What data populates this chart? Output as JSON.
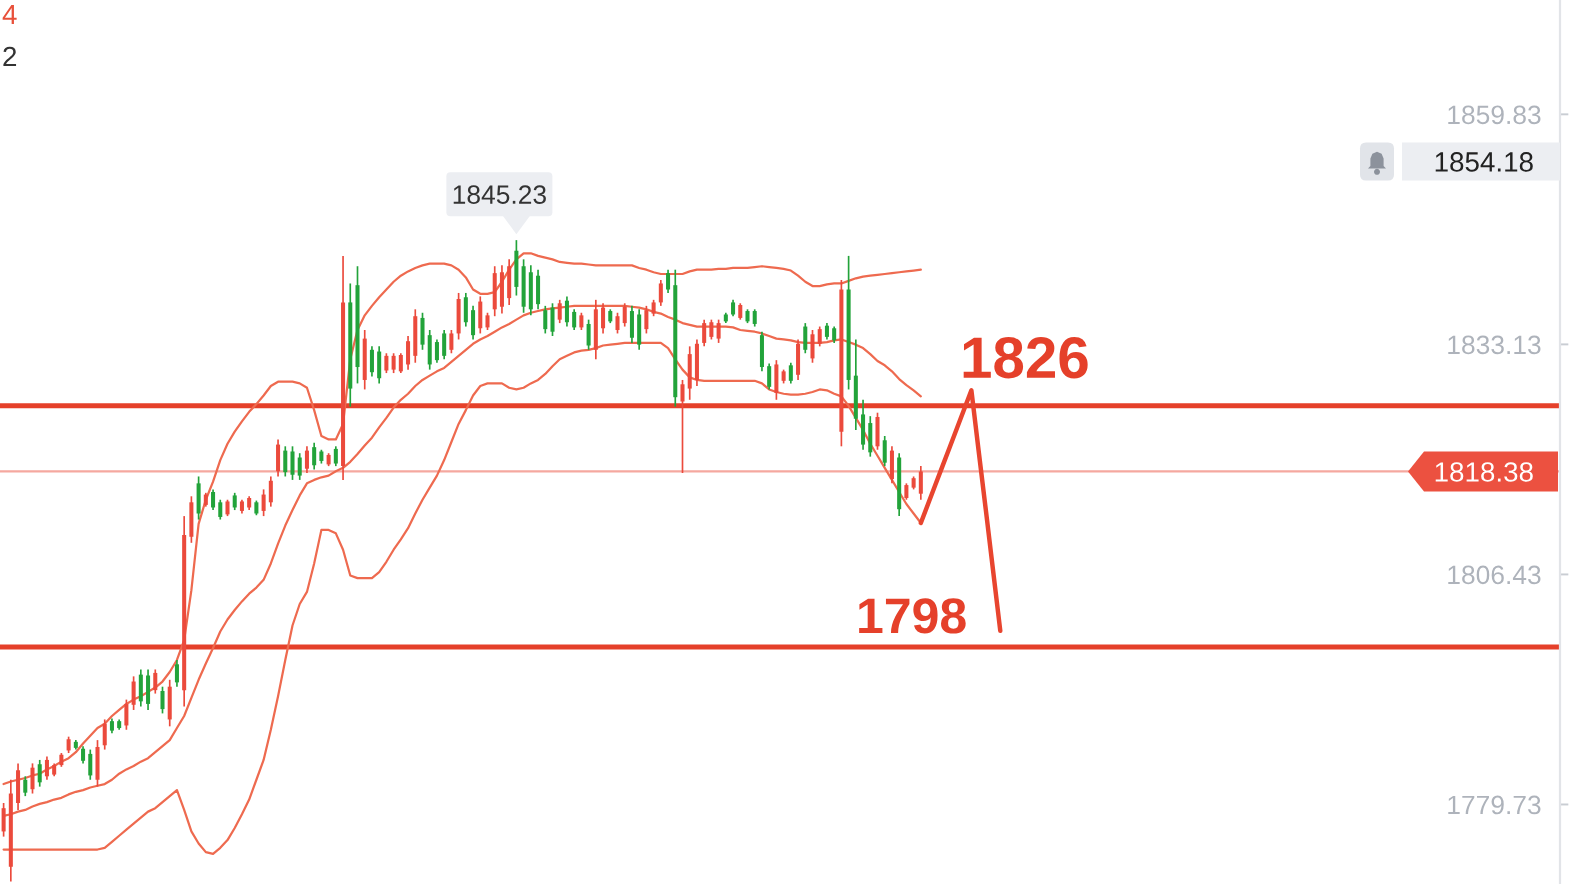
{
  "chart_data": {
    "type": "candlestick",
    "categories": [
      null,
      null,
      null,
      null,
      null,
      null,
      null,
      null,
      null,
      null,
      null,
      null,
      null,
      null,
      null,
      null,
      null,
      null,
      null,
      null,
      null,
      null,
      null,
      null,
      null,
      null,
      null,
      null,
      null,
      null,
      null,
      null,
      null,
      null,
      null,
      null,
      null,
      null,
      null,
      null,
      null,
      null,
      null,
      null,
      null,
      null,
      null,
      null,
      null,
      null,
      null,
      null,
      null,
      null,
      null,
      null,
      null,
      null,
      null,
      null,
      null,
      null,
      null,
      null,
      null,
      null,
      null,
      null,
      null,
      null,
      null,
      null,
      null,
      null,
      null,
      null,
      null,
      null,
      null,
      null,
      null,
      null,
      null,
      null,
      null,
      null,
      null,
      null,
      null,
      null,
      null,
      null,
      null,
      null,
      null,
      null,
      null,
      null,
      null,
      null,
      null,
      null,
      null,
      null,
      null,
      null,
      null,
      null,
      null,
      null,
      null,
      null,
      null,
      null,
      null,
      null,
      null,
      null,
      null,
      null,
      null,
      null,
      null,
      null,
      null,
      null,
      null,
      null,
      null,
      null,
      null,
      null,
      null,
      null,
      null,
      null,
      null,
      null,
      null,
      null,
      null,
      null,
      null,
      null,
      null,
      null,
      null,
      null,
      null,
      null,
      null,
      null,
      null,
      null,
      null,
      null,
      null,
      null,
      null,
      null,
      null,
      null,
      null,
      null,
      null,
      null,
      null,
      null,
      null,
      null,
      null,
      null,
      null,
      null,
      null,
      null,
      null,
      null,
      null,
      null,
      null,
      null,
      null,
      null,
      null,
      null,
      null,
      null,
      null,
      null,
      null,
      null,
      null,
      null,
      null,
      null,
      null,
      null,
      null,
      null,
      null,
      null,
      null,
      null,
      null,
      null,
      null,
      null,
      null,
      null,
      null,
      null,
      null,
      null,
      null,
      null
    ],
    "ohlc": [
      [
        1776.6,
        1779.9,
        1776.0,
        1779.3
      ],
      [
        1772.5,
        1782.6,
        1770.8,
        1781.0
      ],
      [
        1779.9,
        1784.5,
        1779.1,
        1783.7
      ],
      [
        1782.6,
        1783.0,
        1780.7,
        1781.1
      ],
      [
        1781.5,
        1784.5,
        1781.0,
        1784.0
      ],
      [
        1784.4,
        1784.9,
        1781.8,
        1782.3
      ],
      [
        1783.0,
        1785.3,
        1782.6,
        1784.9
      ],
      [
        1783.2,
        1784.5,
        1783.0,
        1784.3
      ],
      [
        1784.3,
        1785.7,
        1784.1,
        1785.5
      ],
      [
        1786.0,
        1787.6,
        1785.7,
        1787.3
      ],
      [
        1787.0,
        1787.2,
        1786.1,
        1786.3
      ],
      [
        1786.2,
        1786.5,
        1784.5,
        1784.8
      ],
      [
        1785.6,
        1786.1,
        1782.6,
        1783.1
      ],
      [
        1782.6,
        1787.2,
        1781.8,
        1786.4
      ],
      [
        1786.6,
        1789.6,
        1786.1,
        1789.1
      ],
      [
        1789.4,
        1789.7,
        1788.0,
        1788.3
      ],
      [
        1789.4,
        1789.6,
        1788.4,
        1788.6
      ],
      [
        1788.9,
        1791.9,
        1788.4,
        1791.4
      ],
      [
        1791.3,
        1794.6,
        1790.7,
        1794.0
      ],
      [
        1794.8,
        1795.4,
        1791.1,
        1791.7
      ],
      [
        1794.7,
        1795.4,
        1790.7,
        1791.4
      ],
      [
        1793.0,
        1795.4,
        1792.6,
        1795.0
      ],
      [
        1792.9,
        1793.4,
        1790.3,
        1790.8
      ],
      [
        1789.6,
        1794.2,
        1788.8,
        1793.4
      ],
      [
        1796.0,
        1796.5,
        1793.4,
        1793.9
      ],
      [
        1793.0,
        1813.2,
        1791.1,
        1811.0
      ],
      [
        1810.8,
        1815.5,
        1810.1,
        1814.8
      ],
      [
        1817.0,
        1817.8,
        1812.8,
        1813.5
      ],
      [
        1814.5,
        1815.9,
        1814.3,
        1815.7
      ],
      [
        1816.0,
        1816.3,
        1813.9,
        1814.2
      ],
      [
        1814.8,
        1815.1,
        1812.8,
        1813.1
      ],
      [
        1813.4,
        1815.1,
        1813.2,
        1814.9
      ],
      [
        1815.6,
        1815.9,
        1813.9,
        1814.2
      ],
      [
        1813.8,
        1815.1,
        1813.5,
        1814.9
      ],
      [
        1814.2,
        1815.5,
        1813.9,
        1815.3
      ],
      [
        1814.8,
        1815.0,
        1813.3,
        1813.5
      ],
      [
        1813.8,
        1816.3,
        1813.2,
        1815.7
      ],
      [
        1814.8,
        1817.8,
        1814.3,
        1817.3
      ],
      [
        1818.4,
        1822.1,
        1817.8,
        1821.5
      ],
      [
        1820.8,
        1821.3,
        1817.8,
        1818.3
      ],
      [
        1820.7,
        1821.3,
        1817.4,
        1818.0
      ],
      [
        1820.0,
        1820.5,
        1817.4,
        1817.9
      ],
      [
        1818.7,
        1821.3,
        1818.2,
        1820.8
      ],
      [
        1821.2,
        1821.7,
        1818.6,
        1819.1
      ],
      [
        1820.7,
        1820.9,
        1819.3,
        1819.6
      ],
      [
        1819.2,
        1820.5,
        1819.0,
        1820.3
      ],
      [
        1821.0,
        1821.3,
        1819.0,
        1819.3
      ],
      [
        1819.0,
        1843.4,
        1817.4,
        1838.0
      ],
      [
        1838.0,
        1840.2,
        1825.9,
        1828.0
      ],
      [
        1840.0,
        1842.2,
        1828.6,
        1830.5
      ],
      [
        1829.0,
        1834.8,
        1827.9,
        1833.8
      ],
      [
        1832.5,
        1832.9,
        1829.4,
        1829.9
      ],
      [
        1832.3,
        1832.9,
        1828.6,
        1829.2
      ],
      [
        1830.1,
        1832.1,
        1829.8,
        1831.8
      ],
      [
        1830.2,
        1832.1,
        1829.8,
        1831.8
      ],
      [
        1830.0,
        1832.1,
        1829.8,
        1831.9
      ],
      [
        1830.8,
        1834.1,
        1830.2,
        1833.5
      ],
      [
        1831.8,
        1837.2,
        1831.0,
        1836.4
      ],
      [
        1836.2,
        1836.8,
        1832.5,
        1833.1
      ],
      [
        1834.2,
        1834.8,
        1830.2,
        1830.8
      ],
      [
        1833.4,
        1833.7,
        1831.0,
        1831.3
      ],
      [
        1834.4,
        1834.8,
        1831.4,
        1831.8
      ],
      [
        1832.5,
        1834.8,
        1832.1,
        1834.4
      ],
      [
        1834.4,
        1839.1,
        1833.7,
        1838.4
      ],
      [
        1838.6,
        1839.1,
        1835.2,
        1835.7
      ],
      [
        1837.1,
        1837.6,
        1833.7,
        1834.2
      ],
      [
        1835.0,
        1838.7,
        1834.4,
        1838.1
      ],
      [
        1835.1,
        1836.8,
        1834.8,
        1836.5
      ],
      [
        1837.2,
        1842.2,
        1836.4,
        1841.4
      ],
      [
        1837.5,
        1842.3,
        1836.7,
        1841.5
      ],
      [
        1838.5,
        1843.0,
        1837.7,
        1842.2
      ],
      [
        1844.0,
        1845.23,
        1838.8,
        1839.8
      ],
      [
        1842.2,
        1843.0,
        1836.8,
        1837.5
      ],
      [
        1841.5,
        1842.3,
        1836.5,
        1837.2
      ],
      [
        1841.1,
        1841.8,
        1837.2,
        1837.8
      ],
      [
        1837.1,
        1837.6,
        1834.4,
        1834.9
      ],
      [
        1837.4,
        1837.9,
        1834.1,
        1834.6
      ],
      [
        1836.0,
        1838.3,
        1835.6,
        1837.9
      ],
      [
        1838.2,
        1838.7,
        1835.2,
        1835.7
      ],
      [
        1836.9,
        1837.2,
        1834.8,
        1835.1
      ],
      [
        1835.1,
        1836.8,
        1834.8,
        1836.5
      ],
      [
        1835.5,
        1836.0,
        1832.5,
        1833.0
      ],
      [
        1832.5,
        1838.3,
        1831.4,
        1837.2
      ],
      [
        1835.0,
        1837.9,
        1834.4,
        1837.4
      ],
      [
        1837.0,
        1837.2,
        1835.6,
        1835.8
      ],
      [
        1834.8,
        1836.8,
        1834.4,
        1836.4
      ],
      [
        1835.6,
        1837.9,
        1835.2,
        1837.5
      ],
      [
        1837.0,
        1837.6,
        1833.3,
        1833.9
      ],
      [
        1836.6,
        1837.2,
        1832.5,
        1833.1
      ],
      [
        1834.9,
        1837.6,
        1834.4,
        1837.1
      ],
      [
        1836.7,
        1838.3,
        1836.4,
        1838.0
      ],
      [
        1838.0,
        1840.6,
        1837.6,
        1840.2
      ],
      [
        1841.4,
        1841.8,
        1839.1,
        1839.5
      ],
      [
        1840.0,
        1841.8,
        1825.9,
        1827.0
      ],
      [
        1826.5,
        1829.0,
        1818.2,
        1828.5
      ],
      [
        1828.0,
        1832.9,
        1826.7,
        1832.0
      ],
      [
        1829.0,
        1833.7,
        1828.3,
        1833.2
      ],
      [
        1833.3,
        1836.0,
        1832.9,
        1835.6
      ],
      [
        1834.0,
        1836.0,
        1833.7,
        1835.7
      ],
      [
        1833.8,
        1836.0,
        1833.3,
        1835.6
      ],
      [
        1836.6,
        1836.8,
        1835.6,
        1835.8
      ],
      [
        1838.0,
        1838.3,
        1836.4,
        1836.6
      ],
      [
        1836.2,
        1837.9,
        1836.0,
        1837.7
      ],
      [
        1837.0,
        1837.2,
        1835.6,
        1835.8
      ],
      [
        1837.0,
        1837.2,
        1835.2,
        1835.5
      ],
      [
        1834.2,
        1834.6,
        1830.0,
        1830.5
      ],
      [
        1830.6,
        1830.9,
        1827.9,
        1828.2
      ],
      [
        1827.5,
        1831.3,
        1826.7,
        1830.8
      ],
      [
        1828.9,
        1830.2,
        1828.6,
        1830.0
      ],
      [
        1830.7,
        1831.0,
        1828.6,
        1828.9
      ],
      [
        1829.6,
        1833.7,
        1829.0,
        1833.2
      ],
      [
        1835.2,
        1835.6,
        1832.1,
        1832.5
      ],
      [
        1831.5,
        1834.8,
        1831.0,
        1834.3
      ],
      [
        1833.2,
        1835.2,
        1832.9,
        1834.9
      ],
      [
        1835.3,
        1835.6,
        1833.7,
        1834.0
      ],
      [
        1835.0,
        1835.2,
        1833.3,
        1833.6
      ],
      [
        1823.0,
        1840.6,
        1821.3,
        1839.5
      ],
      [
        1839.5,
        1843.4,
        1827.9,
        1829.0
      ],
      [
        1829.5,
        1833.7,
        1823.2,
        1824.5
      ],
      [
        1825.0,
        1826.7,
        1820.9,
        1821.5
      ],
      [
        1824.0,
        1824.8,
        1820.1,
        1820.6
      ],
      [
        1821.3,
        1825.2,
        1820.9,
        1824.7
      ],
      [
        1822.0,
        1822.5,
        1819.0,
        1819.4
      ],
      [
        1817.5,
        1821.3,
        1817.0,
        1820.8
      ],
      [
        1820.0,
        1820.5,
        1813.2,
        1814.0
      ],
      [
        1815.3,
        1817.0,
        1815.1,
        1816.8
      ],
      [
        1816.5,
        1817.8,
        1816.3,
        1817.6
      ],
      [
        1815.8,
        1819.0,
        1815.1,
        1818.38
      ],
      null,
      null,
      null,
      null,
      null,
      null,
      null,
      null,
      null,
      null,
      null,
      null,
      null,
      null,
      null,
      null,
      null,
      null,
      null,
      null,
      null,
      null,
      null,
      null,
      null,
      null,
      null,
      null,
      null,
      null,
      null,
      null,
      null,
      null,
      null,
      null,
      null,
      null,
      null,
      null,
      null,
      null,
      null,
      null,
      null,
      null,
      null,
      null,
      null,
      null,
      null,
      null,
      null,
      null,
      null,
      null,
      null,
      null,
      null,
      null,
      null,
      null,
      null,
      null,
      null,
      null,
      null,
      null,
      null,
      null,
      null,
      null,
      null,
      null,
      null,
      null,
      null,
      null,
      null,
      null,
      null,
      null,
      null,
      null,
      null,
      null,
      null,
      null
    ],
    "colors": [
      "#eb4a3c",
      "#eb4a3c",
      "#eb4a3c",
      "#22a33a",
      "#eb4a3c",
      "#22a33a",
      "#eb4a3c",
      "#eb4a3c",
      "#eb4a3c",
      "#eb4a3c",
      "#22a33a",
      "#22a33a",
      "#22a33a",
      "#eb4a3c",
      "#eb4a3c",
      "#22a33a",
      "#22a33a",
      "#eb4a3c",
      "#eb4a3c",
      "#22a33a",
      "#22a33a",
      "#eb4a3c",
      "#22a33a",
      "#eb4a3c",
      "#22a33a",
      "#eb4a3c",
      "#eb4a3c",
      "#22a33a",
      "#eb4a3c",
      "#22a33a",
      "#22a33a",
      "#eb4a3c",
      "#22a33a",
      "#eb4a3c",
      "#eb4a3c",
      "#22a33a",
      "#eb4a3c",
      "#eb4a3c",
      "#eb4a3c",
      "#22a33a",
      "#22a33a",
      "#22a33a",
      "#eb4a3c",
      "#22a33a",
      "#22a33a",
      "#eb4a3c",
      "#22a33a",
      "#eb4a3c",
      "#22a33a",
      "#22a33a",
      "#eb4a3c",
      "#22a33a",
      "#22a33a",
      "#eb4a3c",
      "#eb4a3c",
      "#eb4a3c",
      "#eb4a3c",
      "#eb4a3c",
      "#22a33a",
      "#22a33a",
      "#22a33a",
      "#22a33a",
      "#eb4a3c",
      "#eb4a3c",
      "#22a33a",
      "#22a33a",
      "#eb4a3c",
      "#eb4a3c",
      "#eb4a3c",
      "#eb4a3c",
      "#eb4a3c",
      "#22a33a",
      "#22a33a",
      "#22a33a",
      "#22a33a",
      "#22a33a",
      "#22a33a",
      "#eb4a3c",
      "#22a33a",
      "#22a33a",
      "#eb4a3c",
      "#22a33a",
      "#eb4a3c",
      "#eb4a3c",
      "#22a33a",
      "#eb4a3c",
      "#eb4a3c",
      "#22a33a",
      "#22a33a",
      "#eb4a3c",
      "#eb4a3c",
      "#eb4a3c",
      "#22a33a",
      "#22a33a",
      "#eb4a3c",
      "#eb4a3c",
      "#eb4a3c",
      "#eb4a3c",
      "#eb4a3c",
      "#eb4a3c",
      "#22a33a",
      "#22a33a",
      "#eb4a3c",
      "#22a33a",
      "#22a33a",
      "#22a33a",
      "#22a33a",
      "#eb4a3c",
      "#eb4a3c",
      "#22a33a",
      "#eb4a3c",
      "#22a33a",
      "#eb4a3c",
      "#eb4a3c",
      "#22a33a",
      "#22a33a",
      "#eb4a3c",
      "#22a33a",
      "#22a33a",
      "#22a33a",
      "#22a33a",
      "#eb4a3c",
      "#22a33a",
      "#eb4a3c",
      "#22a33a",
      "#eb4a3c",
      "#eb4a3c",
      "#eb4a3c",
      null,
      null,
      null,
      null,
      null,
      null,
      null,
      null,
      null,
      null,
      null,
      null,
      null,
      null,
      null,
      null,
      null,
      null,
      null,
      null,
      null,
      null,
      null,
      null,
      null,
      null,
      null,
      null,
      null,
      null,
      null,
      null,
      null,
      null,
      null,
      null,
      null,
      null,
      null,
      null,
      null,
      null,
      null,
      null,
      null,
      null,
      null,
      null,
      null,
      null,
      null,
      null,
      null,
      null,
      null,
      null,
      null,
      null,
      null,
      null,
      null,
      null,
      null,
      null,
      null,
      null,
      null,
      null,
      null,
      null,
      null,
      null,
      null,
      null,
      null,
      null,
      null,
      null,
      null,
      null,
      null,
      null,
      null,
      null,
      null,
      null,
      null,
      null
    ],
    "series": [
      {
        "type": "line",
        "color": "#ee6a4f",
        "values": [
          1782.1,
          1782.4,
          1782.6,
          1782.8,
          1783.1,
          1783.3,
          1783.8,
          1784.2,
          1784.7,
          1785.1,
          1785.8,
          1786.8,
          1787.7,
          1788.6,
          1789.1,
          1790.0,
          1790.7,
          1791.4,
          1791.9,
          1792.3,
          1792.8,
          1793.3,
          1794.0,
          1795.1,
          1796.5,
          1798.8,
          1804.6,
          1812.3,
          1815.1,
          1817.2,
          1819.7,
          1821.6,
          1823.0,
          1824.2,
          1825.3,
          1826.2,
          1827.2,
          1828.3,
          1828.8,
          1828.8,
          1828.8,
          1828.6,
          1828.1,
          1825.5,
          1822.5,
          1822.1,
          1822.1,
          1823.9,
          1831.4,
          1834.8,
          1836.5,
          1837.6,
          1838.6,
          1839.5,
          1840.4,
          1841.1,
          1841.6,
          1842.0,
          1842.3,
          1842.5,
          1842.5,
          1842.5,
          1842.3,
          1841.8,
          1840.9,
          1839.5,
          1839.0,
          1839.0,
          1839.2,
          1840.4,
          1841.8,
          1843.0,
          1843.7,
          1843.7,
          1843.4,
          1843.2,
          1843.0,
          1842.7,
          1842.6,
          1842.5,
          1842.5,
          1842.4,
          1842.3,
          1842.3,
          1842.3,
          1842.3,
          1842.3,
          1842.3,
          1842.0,
          1841.8,
          1841.5,
          1841.3,
          1841.3,
          1841.3,
          1841.3,
          1841.6,
          1841.8,
          1841.8,
          1841.8,
          1841.9,
          1841.9,
          1842.0,
          1842.0,
          1842.0,
          1842.1,
          1842.2,
          1842.1,
          1842.0,
          1841.9,
          1841.7,
          1841.1,
          1840.4,
          1839.9,
          1839.9,
          1840.1,
          1840.2,
          1840.2,
          1840.5,
          1840.8,
          1841.0,
          1841.1,
          1841.2,
          1841.3,
          1841.4,
          1841.5,
          1841.6,
          1841.7,
          1841.8,
          null,
          null,
          null,
          null,
          null,
          null,
          null,
          null,
          null,
          null,
          null,
          null,
          null,
          null,
          null,
          null,
          null,
          null,
          null,
          null,
          null,
          null,
          null,
          null,
          null,
          null,
          null,
          null,
          null,
          null,
          null,
          null,
          null,
          null,
          null,
          null,
          null,
          null,
          null,
          null,
          null,
          null,
          null,
          null,
          null,
          null,
          null,
          null,
          null,
          null,
          null,
          null,
          null,
          null,
          null,
          null,
          null,
          null,
          null,
          null,
          null,
          null,
          null,
          null,
          null,
          null,
          null,
          null,
          null,
          null,
          null,
          null,
          null,
          null,
          null,
          null,
          null,
          null,
          null,
          null,
          null,
          null,
          null,
          null,
          null,
          null,
          null,
          null
        ]
      },
      {
        "type": "line",
        "color": "#ee6a4f",
        "values": [
          1778.4,
          1778.6,
          1778.9,
          1779.1,
          1779.5,
          1779.8,
          1780.0,
          1780.3,
          1780.5,
          1780.9,
          1781.2,
          1781.4,
          1781.7,
          1781.9,
          1782.1,
          1782.6,
          1783.3,
          1783.8,
          1784.2,
          1784.7,
          1785.1,
          1785.8,
          1786.5,
          1787.2,
          1788.6,
          1790.0,
          1792.1,
          1794.2,
          1796.1,
          1797.9,
          1799.8,
          1801.2,
          1802.3,
          1803.3,
          1804.2,
          1804.9,
          1805.8,
          1807.7,
          1810.0,
          1812.1,
          1813.9,
          1815.6,
          1817.0,
          1817.4,
          1817.7,
          1817.9,
          1818.4,
          1818.8,
          1819.5,
          1820.4,
          1821.4,
          1822.3,
          1823.5,
          1824.6,
          1825.8,
          1826.7,
          1827.4,
          1828.3,
          1829.0,
          1829.5,
          1830.0,
          1830.4,
          1831.1,
          1831.8,
          1832.5,
          1833.2,
          1833.7,
          1834.1,
          1834.6,
          1835.1,
          1835.5,
          1836.0,
          1836.5,
          1836.8,
          1837.0,
          1837.2,
          1837.3,
          1837.4,
          1837.5,
          1837.6,
          1837.6,
          1837.6,
          1837.6,
          1837.6,
          1837.6,
          1837.6,
          1837.6,
          1837.5,
          1837.4,
          1837.2,
          1836.9,
          1836.7,
          1836.3,
          1836.0,
          1835.6,
          1835.4,
          1835.2,
          1835.2,
          1835.2,
          1835.2,
          1835.2,
          1835.1,
          1834.8,
          1834.7,
          1834.6,
          1834.4,
          1834.1,
          1833.8,
          1833.7,
          1833.6,
          1833.4,
          1833.3,
          1833.3,
          1833.3,
          1833.4,
          1833.6,
          1833.7,
          1833.4,
          1833.1,
          1832.7,
          1832.0,
          1831.2,
          1830.7,
          1830.0,
          1829.1,
          1828.4,
          1827.8,
          1827.1,
          null,
          null,
          null,
          null,
          null,
          null,
          null,
          null,
          null,
          null,
          null,
          null,
          null,
          null,
          null,
          null,
          null,
          null,
          null,
          null,
          null,
          null,
          null,
          null,
          null,
          null,
          null,
          null,
          null,
          null,
          null,
          null,
          null,
          null,
          null,
          null,
          null,
          null,
          null,
          null,
          null,
          null,
          null,
          null,
          null,
          null,
          null,
          null,
          null,
          null,
          null,
          null,
          null,
          null,
          null,
          null,
          null,
          null,
          null,
          null,
          null,
          null,
          null,
          null,
          null,
          null,
          null,
          null,
          null,
          null,
          null,
          null,
          null,
          null,
          null,
          null,
          null,
          null,
          null,
          null,
          null,
          null,
          null,
          null,
          null,
          null,
          null,
          null
        ]
      },
      {
        "type": "line",
        "color": "#ee6a4f",
        "values": [
          1774.5,
          1774.5,
          1774.5,
          1774.5,
          1774.5,
          1774.5,
          1774.5,
          1774.5,
          1774.5,
          1774.5,
          1774.5,
          1774.5,
          1774.5,
          1774.5,
          1774.7,
          1775.4,
          1776.1,
          1776.8,
          1777.5,
          1778.2,
          1778.9,
          1779.3,
          1780.0,
          1780.7,
          1781.4,
          1779.1,
          1776.6,
          1775.2,
          1774.2,
          1774.0,
          1774.7,
          1775.6,
          1777.0,
          1778.6,
          1780.3,
          1782.6,
          1784.9,
          1788.4,
          1792.3,
          1796.5,
          1800.5,
          1803.0,
          1804.4,
          1807.7,
          1811.6,
          1811.6,
          1811.2,
          1809.3,
          1806.3,
          1806.0,
          1806.0,
          1806.0,
          1806.7,
          1807.9,
          1809.3,
          1810.5,
          1811.8,
          1813.5,
          1815.1,
          1816.5,
          1817.9,
          1819.7,
          1821.8,
          1823.9,
          1825.5,
          1827.2,
          1828.3,
          1828.6,
          1828.6,
          1828.6,
          1828.1,
          1827.9,
          1828.1,
          1828.6,
          1829.0,
          1829.7,
          1830.6,
          1831.4,
          1831.8,
          1832.2,
          1832.4,
          1832.5,
          1832.7,
          1833.0,
          1833.1,
          1833.2,
          1833.3,
          1833.3,
          1833.3,
          1833.3,
          1833.3,
          1833.3,
          1832.7,
          1831.4,
          1830.2,
          1829.3,
          1829.0,
          1828.9,
          1828.9,
          1828.9,
          1828.9,
          1828.9,
          1828.9,
          1828.9,
          1828.9,
          1828.6,
          1827.9,
          1827.6,
          1827.4,
          1827.3,
          1827.3,
          1827.4,
          1827.6,
          1827.9,
          1827.8,
          1827.4,
          1827.1,
          1826.0,
          1824.6,
          1823.2,
          1821.6,
          1820.2,
          1818.8,
          1817.4,
          1816.0,
          1814.6,
          1813.5,
          1812.4,
          null,
          null,
          null,
          null,
          null,
          null,
          null,
          null,
          null,
          null,
          null,
          null,
          null,
          null,
          null,
          null,
          null,
          null,
          null,
          null,
          null,
          null,
          null,
          null,
          null,
          null,
          null,
          null,
          null,
          null,
          null,
          null,
          null,
          null,
          null,
          null,
          null,
          null,
          null,
          null,
          null,
          null,
          null,
          null,
          null,
          null,
          null,
          null,
          null,
          null,
          null,
          null,
          null,
          null,
          null,
          null,
          null,
          null,
          null,
          null,
          null,
          null,
          null,
          null,
          null,
          null,
          null,
          null,
          null,
          null,
          null,
          null,
          null,
          null,
          null,
          null,
          null,
          null,
          null,
          null,
          null,
          null,
          null,
          null,
          null,
          null,
          null,
          null
        ]
      },
      {
        "type": "line",
        "color": "#e8452f",
        "values": [
          null,
          null,
          null,
          null,
          null,
          null,
          null,
          null,
          null,
          null,
          null,
          null,
          null,
          null,
          null,
          null,
          null,
          null,
          null,
          null,
          null,
          null,
          null,
          null,
          null,
          null,
          null,
          null,
          null,
          null,
          null,
          null,
          null,
          null,
          null,
          null,
          null,
          null,
          null,
          null,
          null,
          null,
          null,
          null,
          null,
          null,
          null,
          null,
          null,
          null,
          null,
          null,
          null,
          null,
          null,
          null,
          null,
          null,
          null,
          null,
          null,
          null,
          null,
          null,
          null,
          null,
          null,
          null,
          null,
          null,
          null,
          null,
          null,
          null,
          null,
          null,
          null,
          null,
          null,
          null,
          null,
          null,
          null,
          null,
          null,
          null,
          null,
          null,
          null,
          null,
          null,
          null,
          null,
          null,
          null,
          null,
          null,
          null,
          null,
          null,
          null,
          null,
          null,
          null,
          null,
          null,
          null,
          null,
          null,
          null,
          null,
          null,
          null,
          null,
          null,
          null,
          null,
          null,
          null,
          null,
          null,
          null,
          null,
          null,
          null,
          null,
          null,
          1812.4,
          1814.6,
          1816.8,
          1819.0,
          1821.2,
          1823.4,
          1825.6,
          1827.8,
          1820.8,
          1813.9,
          1806.9,
          1799.9,
          null,
          null,
          null,
          null,
          null,
          null,
          null,
          null,
          null,
          null,
          null,
          null,
          null,
          null,
          null,
          null,
          null,
          null,
          null,
          null,
          null,
          null,
          null,
          null,
          null,
          null,
          null,
          null,
          null,
          null,
          null,
          null,
          null,
          null,
          null,
          null,
          null,
          null,
          null,
          null,
          null,
          null,
          null,
          null,
          null,
          null,
          null,
          null,
          null,
          null,
          null,
          null,
          null,
          null,
          null,
          null,
          null,
          null,
          null,
          null,
          null,
          null,
          null,
          null,
          null,
          null,
          null,
          null,
          null,
          null,
          null,
          null,
          null,
          null,
          null,
          null,
          null
        ]
      }
    ],
    "ylim": [
      1770.5,
      1873.1
    ],
    "yticks": [
      1779.73,
      1806.43,
      1833.13,
      1859.83
    ],
    "tick_labels": "y",
    "ref_lines": [
      {
        "axis": "y",
        "value": 1826,
        "label": "1826",
        "color": "#e5402a"
      },
      {
        "axis": "y",
        "value": 1798,
        "label": "1798",
        "color": "#e5402a"
      },
      {
        "axis": "y",
        "value": 1818.38,
        "label": "1818.38",
        "color": "#ec5140"
      }
    ],
    "annotations": [
      "1845.23",
      "1854.18",
      "4",
      "2"
    ]
  }
}
